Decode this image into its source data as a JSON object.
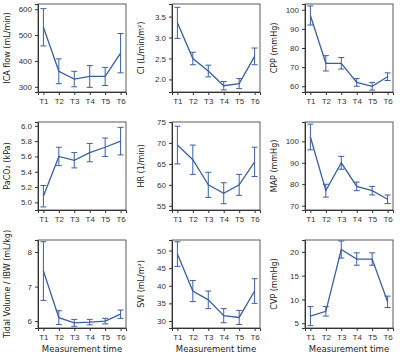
{
  "chart_data": [
    {
      "type": "line",
      "y_label": "ICA flow (mL/min)",
      "categories": [
        "T1",
        "T2",
        "T3",
        "T4",
        "T5",
        "T6"
      ],
      "values": [
        530,
        360,
        330,
        340,
        340,
        430
      ],
      "errors": [
        72,
        48,
        30,
        42,
        35,
        76
      ],
      "ylim": [
        280,
        620
      ],
      "yticks": [
        300,
        400,
        500,
        600
      ],
      "color": "#3b5ea3"
    },
    {
      "type": "line",
      "y_label": "CI (L/min/m²)",
      "categories": [
        "T1",
        "T2",
        "T3",
        "T4",
        "T5",
        "T6"
      ],
      "values": [
        3.35,
        2.5,
        2.2,
        1.85,
        1.9,
        2.55
      ],
      "errors": [
        0.37,
        0.15,
        0.14,
        0.1,
        0.12,
        0.2
      ],
      "ylim": [
        1.7,
        3.8
      ],
      "yticks": [
        {
          "value": 2,
          "label": "2.0"
        },
        2.5,
        {
          "value": 3,
          "label": "3.0"
        },
        3.5
      ],
      "color": "#3b5ea3"
    },
    {
      "type": "line",
      "y_label": "CPP (mmHg)",
      "categories": [
        "T1",
        "T2",
        "T3",
        "T4",
        "T5",
        "T6"
      ],
      "values": [
        97,
        72,
        72,
        62,
        60,
        65
      ],
      "errors": [
        5,
        4,
        3,
        2,
        2,
        2
      ],
      "ylim": [
        57,
        103
      ],
      "yticks": [
        60,
        70,
        80,
        90,
        100
      ],
      "color": "#3b5ea3"
    },
    {
      "type": "line",
      "y_label": "PaCO₂ (kPa)",
      "categories": [
        "T1",
        "T2",
        "T3",
        "T4",
        "T5",
        "T6"
      ],
      "values": [
        5.08,
        5.6,
        5.55,
        5.65,
        5.72,
        5.8
      ],
      "errors": [
        0.14,
        0.12,
        0.1,
        0.12,
        0.12,
        0.18
      ],
      "ylim": [
        4.9,
        6.05
      ],
      "yticks": [
        {
          "value": 5,
          "label": "5.0"
        },
        5.2,
        5.4,
        5.6,
        5.8,
        {
          "value": 6,
          "label": "6.0"
        }
      ],
      "color": "#3b5ea3"
    },
    {
      "type": "line",
      "y_label": "HR (1/min)",
      "categories": [
        "T1",
        "T2",
        "T3",
        "T4",
        "T5",
        "T6"
      ],
      "values": [
        69.5,
        66,
        60,
        58,
        60,
        65.5
      ],
      "errors": [
        4.5,
        3.5,
        3,
        2.5,
        2.5,
        3.5
      ],
      "ylim": [
        54,
        75
      ],
      "yticks": [
        55,
        60,
        65,
        70,
        75
      ],
      "color": "#3b5ea3"
    },
    {
      "type": "line",
      "y_label": "MAP (mmHg)",
      "categories": [
        "T1",
        "T2",
        "T3",
        "T4",
        "T5",
        "T6"
      ],
      "values": [
        102,
        77,
        90,
        79,
        77,
        73
      ],
      "errors": [
        6,
        3,
        3,
        2,
        2,
        2
      ],
      "ylim": [
        68,
        109
      ],
      "yticks": [
        70,
        80,
        90,
        100
      ],
      "color": "#3b5ea3"
    },
    {
      "type": "line",
      "y_label": "Tidal Volume / IBW (mL/kg)",
      "x_label": "Measurement time",
      "categories": [
        "T1",
        "T2",
        "T3",
        "T4",
        "T5",
        "T6"
      ],
      "values": [
        7.45,
        6.1,
        5.95,
        5.97,
        6.0,
        6.2
      ],
      "errors": [
        0.85,
        0.2,
        0.1,
        0.08,
        0.08,
        0.12
      ],
      "ylim": [
        5.8,
        8.35
      ],
      "yticks": [
        6,
        7,
        8
      ],
      "color": "#3b5ea3"
    },
    {
      "type": "line",
      "y_label": "SVI (mL/m²)",
      "x_label": "Measurement time",
      "categories": [
        "T1",
        "T2",
        "T3",
        "T4",
        "T5",
        "T6"
      ],
      "values": [
        49,
        38.5,
        36,
        31.5,
        31,
        38.5
      ],
      "errors": [
        3.5,
        3,
        2.5,
        2,
        2,
        3.5
      ],
      "ylim": [
        28,
        53
      ],
      "yticks": [
        30,
        35,
        40,
        45,
        50
      ],
      "color": "#3b5ea3"
    },
    {
      "type": "line",
      "y_label": "CVP (mmHg)",
      "x_label": "Measurement time",
      "categories": [
        "T1",
        "T2",
        "T3",
        "T4",
        "T5",
        "T6"
      ],
      "values": [
        6.5,
        7.5,
        20.5,
        18.5,
        18.5,
        9.5
      ],
      "errors": [
        2,
        1,
        1.8,
        1.3,
        1.3,
        1.2
      ],
      "ylim": [
        4,
        22.5
      ],
      "yticks": [
        5,
        10,
        15,
        20
      ],
      "color": "#3b5ea3"
    }
  ]
}
